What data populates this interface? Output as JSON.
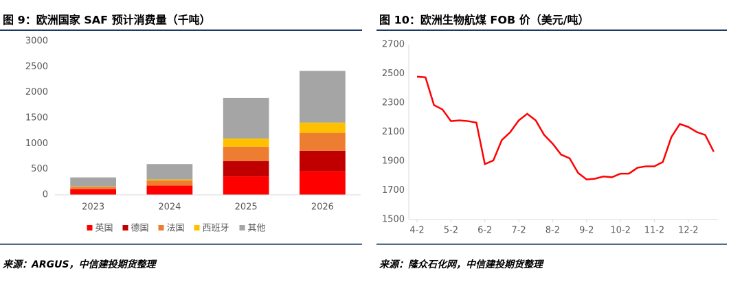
{
  "chart_data": [
    {
      "type": "bar",
      "stacked": true,
      "title": "图 9：欧洲国家 SAF 预计消费量（千吨）",
      "source": "来源：ARGUS，中信建投期货整理",
      "categories": [
        "2023",
        "2024",
        "2025",
        "2026"
      ],
      "series": [
        {
          "name": "英国",
          "color": "#ff0000",
          "values": [
            110,
            180,
            360,
            460
          ]
        },
        {
          "name": "德国",
          "color": "#c00000",
          "values": [
            0,
            0,
            300,
            400
          ]
        },
        {
          "name": "法国",
          "color": "#ed7d31",
          "values": [
            40,
            100,
            280,
            350
          ]
        },
        {
          "name": "西班牙",
          "color": "#ffc000",
          "values": [
            10,
            20,
            160,
            200
          ]
        },
        {
          "name": "其他",
          "color": "#a5a5a5",
          "values": [
            180,
            300,
            790,
            1010
          ]
        }
      ],
      "ylim": [
        0,
        3000
      ],
      "yticks": [
        0,
        500,
        1000,
        1500,
        2000,
        2500,
        3000
      ],
      "grid": false,
      "legend": "bottom"
    },
    {
      "type": "line",
      "title": "图 10：欧洲生物航煤 FOB 价（美元/吨）",
      "source": "来源：隆众石化网，中信建投期货整理",
      "categories": [
        "4-2",
        null,
        null,
        null,
        "5-2",
        null,
        null,
        null,
        "6-2",
        null,
        null,
        null,
        "7-2",
        null,
        null,
        null,
        "8-2",
        null,
        null,
        null,
        "9-2",
        null,
        null,
        null,
        "10-2",
        null,
        null,
        null,
        "11-2",
        null,
        null,
        null,
        "12-2",
        null,
        null,
        null
      ],
      "series": [
        {
          "name": null,
          "color": "#ff0000",
          "values": [
            2480,
            2475,
            2285,
            2255,
            2175,
            2180,
            2175,
            2165,
            1880,
            1905,
            2045,
            2100,
            2180,
            2225,
            2180,
            2080,
            2020,
            1945,
            1920,
            1820,
            1775,
            1780,
            1795,
            1790,
            1815,
            1815,
            1855,
            1865,
            1865,
            1895,
            2065,
            2155,
            2135,
            2100,
            2080,
            1965
          ]
        }
      ],
      "ylim": [
        1500,
        2700
      ],
      "yticks": [
        1500,
        1700,
        1900,
        2100,
        2300,
        2500,
        2700
      ],
      "grid": false
    }
  ]
}
